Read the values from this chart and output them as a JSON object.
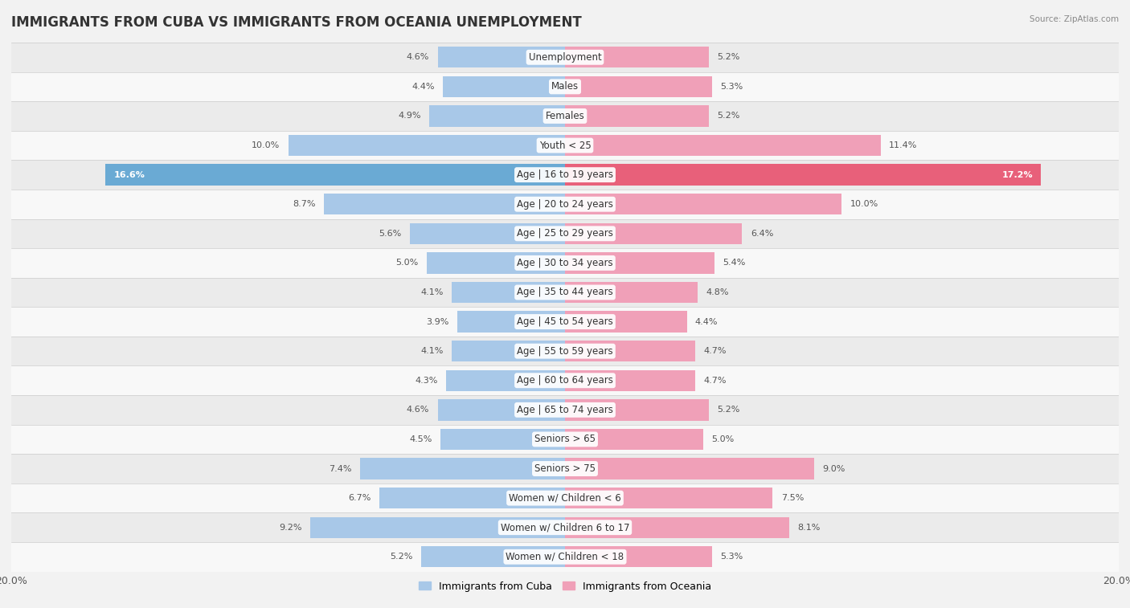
{
  "title": "IMMIGRANTS FROM CUBA VS IMMIGRANTS FROM OCEANIA UNEMPLOYMENT",
  "source": "Source: ZipAtlas.com",
  "categories": [
    "Unemployment",
    "Males",
    "Females",
    "Youth < 25",
    "Age | 16 to 19 years",
    "Age | 20 to 24 years",
    "Age | 25 to 29 years",
    "Age | 30 to 34 years",
    "Age | 35 to 44 years",
    "Age | 45 to 54 years",
    "Age | 55 to 59 years",
    "Age | 60 to 64 years",
    "Age | 65 to 74 years",
    "Seniors > 65",
    "Seniors > 75",
    "Women w/ Children < 6",
    "Women w/ Children 6 to 17",
    "Women w/ Children < 18"
  ],
  "cuba_values": [
    4.6,
    4.4,
    4.9,
    10.0,
    16.6,
    8.7,
    5.6,
    5.0,
    4.1,
    3.9,
    4.1,
    4.3,
    4.6,
    4.5,
    7.4,
    6.7,
    9.2,
    5.2
  ],
  "oceania_values": [
    5.2,
    5.3,
    5.2,
    11.4,
    17.2,
    10.0,
    6.4,
    5.4,
    4.8,
    4.4,
    4.7,
    4.7,
    5.2,
    5.0,
    9.0,
    7.5,
    8.1,
    5.3
  ],
  "cuba_color": "#a8c8e8",
  "oceania_color": "#f0a0b8",
  "cuba_highlight_color": "#6aaad4",
  "oceania_highlight_color": "#e8607a",
  "background_color": "#f2f2f2",
  "row_color_odd": "#ebebeb",
  "row_color_even": "#f8f8f8",
  "highlight_row": 4,
  "xlim": 20.0,
  "legend_label_cuba": "Immigrants from Cuba",
  "legend_label_oceania": "Immigrants from Oceania",
  "title_fontsize": 12,
  "label_fontsize": 8.5,
  "value_fontsize": 8,
  "bar_fill_ratio": 0.72
}
